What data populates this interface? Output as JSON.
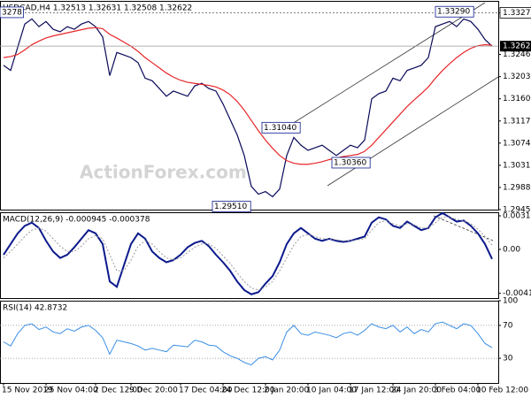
{
  "watermark": "ActionForex.com",
  "chart_data": [
    {
      "type": "line",
      "title": "USDCAD,H4  1.32513 1.32631 1.32508 1.32622",
      "ylim": [
        1.2945,
        1.335
      ],
      "yticks": [
        {
          "value": 1.3327,
          "label": "1.33270"
        },
        {
          "value": 1.3246,
          "label": "1.32460"
        },
        {
          "value": 1.3203,
          "label": "1.32030"
        },
        {
          "value": 1.316,
          "label": "1.31600"
        },
        {
          "value": 1.3117,
          "label": "1.31170"
        },
        {
          "value": 1.3074,
          "label": "1.30740"
        },
        {
          "value": 1.3031,
          "label": "1.30310"
        },
        {
          "value": 1.2988,
          "label": "1.29880"
        },
        {
          "value": 1.2945,
          "label": "1.29450"
        }
      ],
      "last_price": 1.32622,
      "annotations": [
        {
          "value": 1.33278,
          "label": "3278"
        },
        {
          "value": 1.3104,
          "label": "1.31040"
        },
        {
          "value": 1.2951,
          "label": "1.29510"
        },
        {
          "value": 1.3036,
          "label": "1.30360"
        },
        {
          "value": 1.3329,
          "label": "1.33290"
        }
      ],
      "series": [
        {
          "color": "#0a0a5a",
          "width": 1.2,
          "values": [
            1.3225,
            1.3215,
            1.326,
            1.3305,
            1.3315,
            1.33,
            1.331,
            1.3295,
            1.329,
            1.33,
            1.3295,
            1.3305,
            1.331,
            1.33,
            1.328,
            1.3205,
            1.325,
            1.3245,
            1.324,
            1.323,
            1.32,
            1.3195,
            1.318,
            1.3165,
            1.3175,
            1.317,
            1.3165,
            1.3185,
            1.319,
            1.318,
            1.3175,
            1.315,
            1.312,
            1.309,
            1.305,
            1.299,
            1.2975,
            1.298,
            1.297,
            1.2985,
            1.305,
            1.3085,
            1.307,
            1.306,
            1.3065,
            1.307,
            1.306,
            1.305,
            1.306,
            1.307,
            1.3065,
            1.308,
            1.316,
            1.317,
            1.3175,
            1.32,
            1.3195,
            1.3215,
            1.322,
            1.3225,
            1.324,
            1.33,
            1.3305,
            1.331,
            1.33,
            1.3315,
            1.331,
            1.3295,
            1.3275,
            1.3262
          ]
        },
        {
          "color": "#e8262a",
          "width": 1.2,
          "values": [
            1.324,
            1.3242,
            1.3246,
            1.3255,
            1.3265,
            1.3272,
            1.3278,
            1.3282,
            1.3285,
            1.3288,
            1.3291,
            1.3294,
            1.3297,
            1.3298,
            1.3296,
            1.3285,
            1.3278,
            1.327,
            1.3262,
            1.3252,
            1.324,
            1.323,
            1.322,
            1.321,
            1.3202,
            1.3196,
            1.3192,
            1.319,
            1.3188,
            1.3186,
            1.3183,
            1.3177,
            1.3168,
            1.3155,
            1.3138,
            1.3118,
            1.3098,
            1.308,
            1.3064,
            1.305,
            1.304,
            1.3035,
            1.3033,
            1.3033,
            1.3035,
            1.3038,
            1.3042,
            1.3045,
            1.3048,
            1.305,
            1.3052,
            1.3058,
            1.307,
            1.3085,
            1.31,
            1.3115,
            1.313,
            1.3145,
            1.3158,
            1.317,
            1.3183,
            1.32,
            1.3215,
            1.3228,
            1.324,
            1.325,
            1.3258,
            1.3263,
            1.3265,
            1.3264
          ]
        }
      ]
    },
    {
      "type": "line",
      "title": "MACD(12,26,9) -0.000945 -0.000378",
      "ylim": [
        -0.00455,
        0.00347
      ],
      "yticks": [
        0.00314,
        {
          "value": 0,
          "label": "0.00"
        },
        -0.004108
      ],
      "series": [
        {
          "color": "#0c1a8c",
          "width": 2,
          "values": [
            -0.0005,
            0.0005,
            0.0015,
            0.0022,
            0.0025,
            0.002,
            0.0008,
            -0.0002,
            -0.0008,
            -0.0005,
            0.0002,
            0.001,
            0.0018,
            0.0015,
            0.0005,
            -0.003,
            -0.0035,
            -0.0015,
            0.0005,
            0.0015,
            0.001,
            -0.0002,
            -0.0008,
            -0.0012,
            -0.001,
            -0.0005,
            0.0002,
            0.0006,
            0.0008,
            0.0003,
            -0.0005,
            -0.0012,
            -0.002,
            -0.003,
            -0.0038,
            -0.0042,
            -0.004,
            -0.0032,
            -0.0025,
            -0.0012,
            0.0005,
            0.0015,
            0.002,
            0.0015,
            0.001,
            0.0008,
            0.001,
            0.0008,
            0.0007,
            0.0008,
            0.001,
            0.0012,
            0.0025,
            0.003,
            0.0028,
            0.0022,
            0.002,
            0.0026,
            0.0022,
            0.0018,
            0.002,
            0.003,
            0.0034,
            0.003,
            0.0026,
            0.0027,
            0.0022,
            0.0015,
            0.0005,
            -0.0009
          ]
        },
        {
          "color": "#9a9a9a",
          "width": 1,
          "dashed": true,
          "values": [
            -0.0008,
            -0.0002,
            0.0005,
            0.0012,
            0.0018,
            0.002,
            0.0017,
            0.001,
            0.0003,
            -0.0002,
            -0.0002,
            0.0003,
            0.001,
            0.0013,
            0.001,
            -0.0005,
            -0.002,
            -0.002,
            -0.001,
            0.0003,
            0.0008,
            0.0005,
            -0.0002,
            -0.0008,
            -0.001,
            -0.0008,
            -0.0003,
            0.0002,
            0.0005,
            0.0005,
            0.0001,
            -0.0006,
            -0.0013,
            -0.0022,
            -0.003,
            -0.0036,
            -0.0038,
            -0.0035,
            -0.003,
            -0.002,
            -0.0008,
            0.0004,
            0.0012,
            0.0014,
            0.0012,
            0.001,
            0.001,
            0.0009,
            0.0008,
            0.0008,
            0.0009,
            0.001,
            0.0018,
            0.0025,
            0.0027,
            0.0024,
            0.0022,
            0.0024,
            0.0023,
            0.002,
            0.002,
            0.0025,
            0.003,
            0.003,
            0.0028,
            0.0027,
            0.0024,
            0.0019,
            0.0012,
            0.0004
          ]
        }
      ]
    },
    {
      "type": "line",
      "title": "RSI(14) 42.8732",
      "ylim": [
        0,
        100
      ],
      "yticks": [
        100,
        70,
        30
      ],
      "categories": [
        "15 Nov 2019",
        null,
        null,
        null,
        null,
        null,
        "25 Nov 04:00",
        null,
        null,
        null,
        null,
        null,
        null,
        "2 Dec 12:00",
        null,
        null,
        null,
        null,
        "9 Dec 20:00",
        null,
        null,
        null,
        null,
        null,
        null,
        "17 Dec 04:00",
        null,
        null,
        null,
        null,
        null,
        "24 Dec 12:00",
        null,
        null,
        null,
        null,
        null,
        "2 Jan 20:00",
        null,
        null,
        null,
        null,
        null,
        "10 Jan 04:00",
        null,
        null,
        null,
        null,
        null,
        "17 Jan 12:00",
        null,
        null,
        null,
        null,
        null,
        "24 Jan 20:00",
        null,
        null,
        null,
        null,
        null,
        "3 Feb 04:00",
        null,
        null,
        null,
        null,
        null,
        "10 Feb 12:00",
        null,
        null
      ],
      "series": [
        {
          "color": "#3a8ee6",
          "width": 1,
          "values": [
            50,
            45,
            60,
            70,
            72,
            65,
            68,
            62,
            60,
            66,
            63,
            68,
            70,
            64,
            55,
            35,
            52,
            50,
            48,
            45,
            40,
            42,
            40,
            38,
            46,
            45,
            44,
            52,
            50,
            46,
            45,
            38,
            33,
            30,
            25,
            22,
            30,
            32,
            28,
            40,
            62,
            70,
            60,
            58,
            62,
            60,
            58,
            55,
            60,
            62,
            58,
            64,
            72,
            68,
            66,
            70,
            62,
            68,
            60,
            65,
            62,
            72,
            74,
            70,
            66,
            72,
            70,
            60,
            48,
            43
          ]
        }
      ]
    }
  ]
}
